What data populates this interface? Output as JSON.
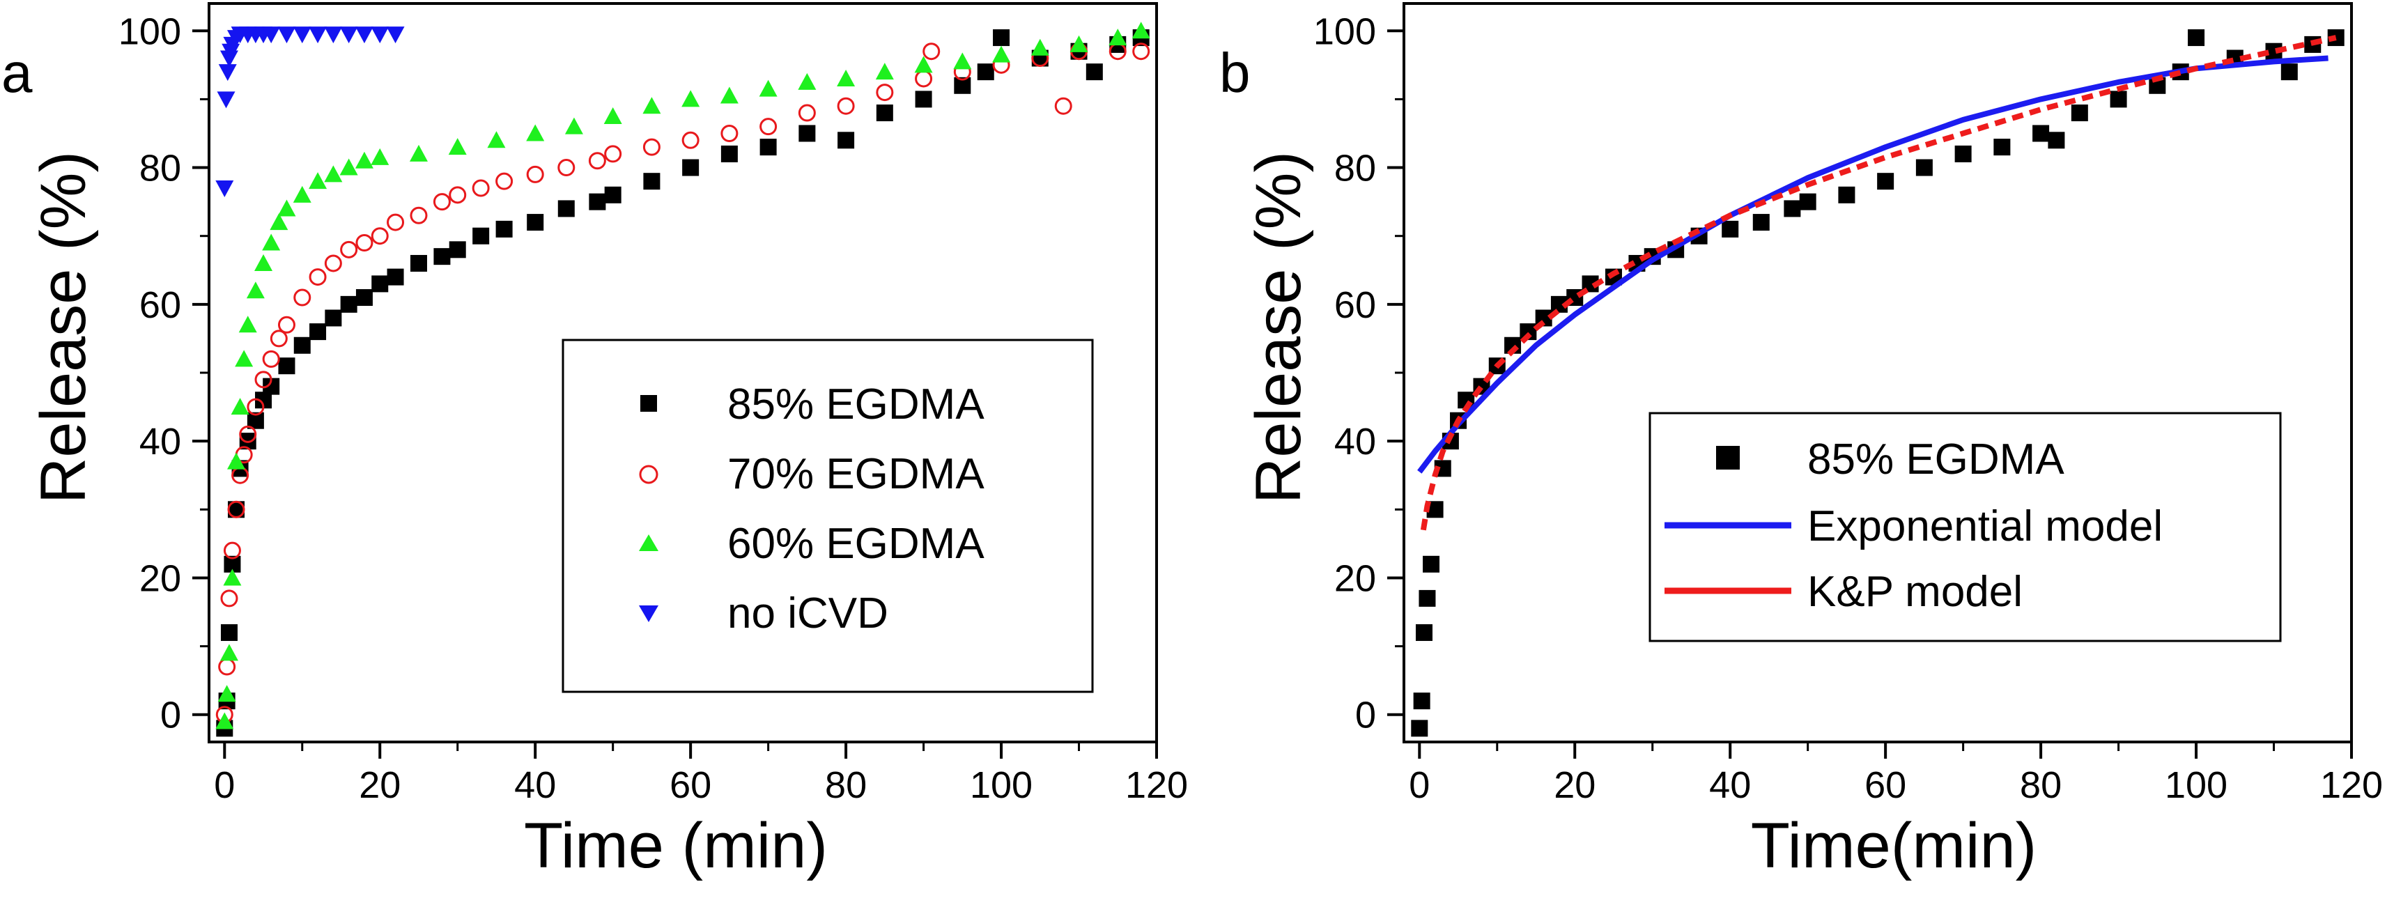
{
  "chart_data": [
    {
      "panel_label": "a",
      "type": "scatter",
      "xlabel": "Time (min)",
      "ylabel": "Release (%)",
      "xlim": [
        -2,
        120
      ],
      "ylim": [
        -4,
        104
      ],
      "x_ticks": [
        0,
        20,
        40,
        60,
        80,
        100,
        120
      ],
      "y_ticks": [
        0,
        20,
        40,
        60,
        80,
        100
      ],
      "legend_position": "center-right",
      "series": [
        {
          "name": "85% EGDMA",
          "marker": "square",
          "color": "#000000",
          "x": [
            0,
            0.3,
            0.6,
            1,
            1.5,
            2,
            3,
            4,
            5,
            6,
            8,
            10,
            12,
            14,
            16,
            18,
            20,
            22,
            25,
            28,
            30,
            33,
            36,
            40,
            44,
            48,
            50,
            55,
            60,
            65,
            70,
            75,
            80,
            85,
            90,
            95,
            98,
            100,
            105,
            110,
            112,
            115,
            118
          ],
          "y": [
            -2,
            2,
            12,
            22,
            30,
            36,
            40,
            43,
            46,
            48,
            51,
            54,
            56,
            58,
            60,
            61,
            63,
            64,
            66,
            67,
            68,
            70,
            71,
            72,
            74,
            75,
            76,
            78,
            80,
            82,
            83,
            85,
            84,
            88,
            90,
            92,
            94,
            99,
            96,
            97,
            94,
            98,
            99
          ]
        },
        {
          "name": "70% EGDMA",
          "marker": "circle-open",
          "color": "#e8191c",
          "x": [
            0,
            0.3,
            0.6,
            1,
            1.5,
            2,
            2.5,
            3,
            4,
            5,
            6,
            7,
            8,
            10,
            12,
            14,
            16,
            18,
            20,
            22,
            25,
            28,
            30,
            33,
            36,
            40,
            44,
            48,
            50,
            55,
            60,
            65,
            70,
            75,
            80,
            85,
            90,
            91,
            95,
            100,
            105,
            108,
            110,
            115,
            118
          ],
          "y": [
            0,
            7,
            17,
            24,
            30,
            35,
            38,
            41,
            45,
            49,
            52,
            55,
            57,
            61,
            64,
            66,
            68,
            69,
            70,
            72,
            73,
            75,
            76,
            77,
            78,
            79,
            80,
            81,
            82,
            83,
            84,
            85,
            86,
            88,
            89,
            91,
            93,
            97,
            94,
            95,
            96,
            89,
            97,
            97,
            97
          ]
        },
        {
          "name": "60% EGDMA",
          "marker": "triangle-up",
          "color": "#1ef01e",
          "x": [
            0,
            0.3,
            0.6,
            1,
            1.5,
            2,
            2.5,
            3,
            4,
            5,
            6,
            7,
            8,
            10,
            12,
            14,
            16,
            18,
            20,
            25,
            30,
            35,
            40,
            45,
            50,
            55,
            60,
            65,
            70,
            75,
            80,
            85,
            90,
            95,
            100,
            105,
            110,
            115,
            118
          ],
          "y": [
            -1,
            3,
            9,
            20,
            37,
            45,
            52,
            57,
            62,
            66,
            69,
            72,
            74,
            76,
            78,
            79,
            80,
            81,
            81.5,
            82,
            83,
            84,
            85,
            86,
            87.5,
            89,
            90,
            90.5,
            91.5,
            92.5,
            93,
            94,
            95,
            95.5,
            96.5,
            97.5,
            98,
            99,
            100
          ]
        },
        {
          "name": "no iCVD",
          "marker": "triangle-down",
          "color": "#1414f0",
          "x": [
            0,
            0.2,
            0.4,
            0.6,
            0.8,
            1,
            1.5,
            2,
            3,
            4,
            5,
            6,
            8,
            10,
            12,
            14,
            16,
            18,
            20,
            22
          ],
          "y": [
            77,
            90,
            94,
            96,
            97,
            98,
            99,
            99.5,
            99.5,
            99.5,
            99.5,
            99.5,
            99.5,
            99.5,
            99.5,
            99.5,
            99.5,
            99.5,
            99.5,
            99.5
          ]
        }
      ]
    },
    {
      "panel_label": "b",
      "type": "scatter",
      "xlabel": "Time(min)",
      "ylabel": "Release (%)",
      "xlim": [
        -2,
        120
      ],
      "ylim": [
        -4,
        104
      ],
      "x_ticks": [
        0,
        20,
        40,
        60,
        80,
        100,
        120
      ],
      "y_ticks": [
        0,
        20,
        40,
        60,
        80,
        100
      ],
      "legend_position": "center-right",
      "series": [
        {
          "name": "85% EGDMA",
          "marker": "square",
          "color": "#000000",
          "x": [
            0,
            0.3,
            0.6,
            1,
            1.5,
            2,
            3,
            4,
            5,
            6,
            8,
            10,
            12,
            14,
            16,
            18,
            20,
            22,
            25,
            28,
            30,
            33,
            36,
            40,
            44,
            48,
            50,
            55,
            60,
            65,
            70,
            75,
            80,
            82,
            85,
            90,
            95,
            98,
            100,
            105,
            110,
            112,
            115,
            118
          ],
          "y": [
            -2,
            2,
            12,
            17,
            22,
            30,
            36,
            40,
            43,
            46,
            48,
            51,
            54,
            56,
            58,
            60,
            61,
            63,
            64,
            66,
            67,
            68,
            70,
            71,
            72,
            74,
            75,
            76,
            78,
            80,
            82,
            83,
            85,
            84,
            88,
            90,
            92,
            94,
            99,
            96,
            97,
            94,
            98,
            99
          ]
        },
        {
          "name": "Exponential model",
          "marker": "line",
          "color": "#1c1cf0",
          "x": [
            0,
            2,
            5,
            10,
            15,
            20,
            30,
            40,
            50,
            60,
            70,
            80,
            90,
            100,
            110,
            117
          ],
          "y": [
            35.5,
            38.5,
            42.5,
            48.5,
            54,
            58.5,
            66.5,
            73,
            78.5,
            83,
            87,
            90,
            92.5,
            94.5,
            95.5,
            96
          ]
        },
        {
          "name": "K&P model",
          "marker": "dashed-line",
          "color": "#ee1c1c",
          "x": [
            0.5,
            1,
            2,
            3,
            5,
            7,
            10,
            15,
            20,
            25,
            30,
            40,
            50,
            60,
            70,
            80,
            90,
            100,
            110,
            118
          ],
          "y": [
            27,
            30.5,
            35,
            38.5,
            43,
            46.5,
            51,
            56.5,
            61,
            64.5,
            67.5,
            73,
            77.5,
            81.5,
            85,
            88.5,
            91.5,
            94.5,
            97,
            99
          ]
        }
      ]
    }
  ]
}
